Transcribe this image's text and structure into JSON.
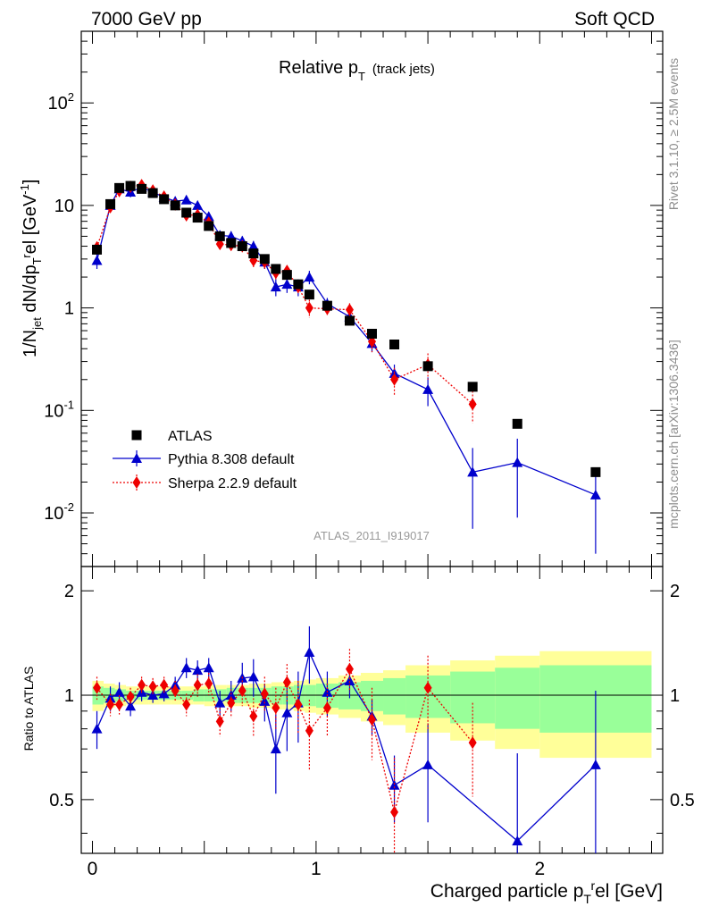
{
  "header": {
    "energy": "7000 GeV pp",
    "process": "Soft QCD"
  },
  "side_labels": {
    "rivet": "Rivet 3.1.10, ≥ 2.5M events",
    "mcplots": "mcplots.cern.ch [arXiv:1306.3436]"
  },
  "analysis_id": "ATLAS_2011_I919017",
  "colors": {
    "atlas": "#000000",
    "pythia": "#0000cc",
    "sherpa": "#ee0000",
    "band_green": "#99ff99",
    "band_yellow": "#ffff99"
  },
  "chart_data": [
    {
      "type": "scatter",
      "title_main": "Relative p",
      "title_sub": "T",
      "title_extra": "(track jets)",
      "ylabel": "1/N_jet dN/dp_T^rel [GeV^-1]",
      "yscale": "log",
      "ylim": [
        0.003,
        500
      ],
      "xlim": [
        -0.05,
        2.55
      ],
      "ytick_labels": [
        "10^-2",
        "10^-1",
        "1",
        "10",
        "10^2"
      ],
      "legend_placement": "lower-left",
      "series": [
        {
          "name": "ATLAS",
          "marker": "square",
          "x": [
            0.02,
            0.08,
            0.12,
            0.17,
            0.22,
            0.27,
            0.32,
            0.37,
            0.42,
            0.47,
            0.52,
            0.57,
            0.62,
            0.67,
            0.72,
            0.77,
            0.82,
            0.87,
            0.92,
            0.97,
            1.05,
            1.15,
            1.25,
            1.35,
            1.5,
            1.7,
            1.9,
            2.25
          ],
          "y": [
            3.7,
            10.3,
            14.8,
            15.5,
            14.5,
            13.2,
            11.5,
            10.0,
            8.5,
            7.6,
            6.3,
            5.0,
            4.3,
            4.0,
            3.4,
            3.0,
            2.4,
            2.1,
            1.7,
            1.35,
            1.05,
            0.75,
            0.56,
            0.44,
            0.27,
            0.17,
            0.074,
            0.025
          ]
        },
        {
          "name": "Pythia 8.308 default",
          "marker": "triangle",
          "x": [
            0.02,
            0.08,
            0.12,
            0.17,
            0.22,
            0.27,
            0.32,
            0.37,
            0.42,
            0.47,
            0.52,
            0.57,
            0.62,
            0.67,
            0.72,
            0.77,
            0.82,
            0.87,
            0.92,
            0.97,
            1.05,
            1.15,
            1.25,
            1.35,
            1.5,
            1.7,
            1.9,
            2.25
          ],
          "y": [
            2.9,
            10.0,
            14.5,
            13.5,
            15.0,
            13.5,
            12.0,
            11.0,
            11.3,
            10.0,
            7.8,
            5.1,
            5.0,
            4.5,
            4.0,
            2.8,
            1.6,
            1.7,
            1.6,
            2.0,
            1.1,
            0.82,
            0.45,
            0.23,
            0.16,
            0.025,
            0.031,
            0.015
          ],
          "err": [
            0.5,
            1.2,
            1.5,
            1.5,
            1.3,
            1.2,
            1.1,
            1.0,
            1.0,
            0.9,
            0.8,
            0.6,
            0.6,
            0.5,
            0.5,
            0.4,
            0.3,
            0.3,
            0.3,
            0.3,
            0.15,
            0.1,
            0.08,
            0.05,
            0.05,
            0.018,
            0.022,
            0.011
          ]
        },
        {
          "name": "Sherpa 2.2.9 default",
          "marker": "diamond",
          "x": [
            0.02,
            0.08,
            0.12,
            0.17,
            0.22,
            0.27,
            0.32,
            0.37,
            0.42,
            0.47,
            0.52,
            0.57,
            0.62,
            0.67,
            0.72,
            0.77,
            0.82,
            0.87,
            0.92,
            0.97,
            1.05,
            1.15,
            1.25,
            1.35,
            1.5,
            1.7
          ],
          "y": [
            3.9,
            9.6,
            13.8,
            15.2,
            15.8,
            14.0,
            12.2,
            10.2,
            8.0,
            8.1,
            6.8,
            4.2,
            4.1,
            4.0,
            2.9,
            2.8,
            2.2,
            2.3,
            1.6,
            1.0,
            0.98,
            0.96,
            0.47,
            0.2,
            0.28,
            0.115
          ],
          "err": [
            0.4,
            1.0,
            1.3,
            1.4,
            1.4,
            1.2,
            1.1,
            1.0,
            0.8,
            0.8,
            0.7,
            0.5,
            0.5,
            0.5,
            0.4,
            0.4,
            0.3,
            0.3,
            0.25,
            0.2,
            0.15,
            0.15,
            0.1,
            0.06,
            0.08,
            0.04
          ]
        }
      ]
    },
    {
      "type": "scatter",
      "ylabel": "Ratio to ATLAS",
      "xlabel": "Charged particle p_T^rel [GeV]",
      "ylim": [
        0.35,
        2.35
      ],
      "xlim": [
        -0.05,
        2.55
      ],
      "xtick_labels": [
        "0",
        "1",
        "2"
      ],
      "ytick_labels": [
        "0.5",
        "1",
        "2"
      ],
      "bands": {
        "x_edges": [
          0.0,
          0.05,
          0.1,
          0.15,
          0.2,
          0.25,
          0.3,
          0.35,
          0.4,
          0.45,
          0.5,
          0.55,
          0.6,
          0.65,
          0.7,
          0.75,
          0.8,
          0.85,
          0.9,
          0.95,
          1.0,
          1.1,
          1.2,
          1.3,
          1.4,
          1.6,
          1.8,
          2.0,
          2.5
        ],
        "green_halfwidth": [
          0.06,
          0.05,
          0.04,
          0.03,
          0.03,
          0.03,
          0.03,
          0.03,
          0.03,
          0.04,
          0.04,
          0.04,
          0.05,
          0.05,
          0.05,
          0.05,
          0.06,
          0.06,
          0.07,
          0.07,
          0.08,
          0.09,
          0.1,
          0.12,
          0.14,
          0.17,
          0.2,
          0.22
        ],
        "yellow_halfwidth": [
          0.1,
          0.08,
          0.07,
          0.06,
          0.06,
          0.06,
          0.06,
          0.06,
          0.06,
          0.06,
          0.07,
          0.07,
          0.07,
          0.07,
          0.08,
          0.08,
          0.09,
          0.09,
          0.1,
          0.11,
          0.12,
          0.14,
          0.16,
          0.18,
          0.22,
          0.26,
          0.3,
          0.34
        ]
      },
      "series": [
        {
          "name": "Pythia 8.308 default",
          "x": [
            0.02,
            0.08,
            0.12,
            0.17,
            0.22,
            0.27,
            0.32,
            0.37,
            0.42,
            0.47,
            0.52,
            0.57,
            0.62,
            0.67,
            0.72,
            0.77,
            0.82,
            0.87,
            0.92,
            0.97,
            1.05,
            1.15,
            1.25,
            1.35,
            1.5,
            1.9,
            2.25
          ],
          "y": [
            0.8,
            0.98,
            1.02,
            0.93,
            1.02,
            1.0,
            1.01,
            1.07,
            1.2,
            1.18,
            1.2,
            0.95,
            1.0,
            1.12,
            1.13,
            0.96,
            0.7,
            0.89,
            0.95,
            1.33,
            1.02,
            1.1,
            0.87,
            0.55,
            0.63,
            0.38,
            0.63
          ],
          "err": [
            0.1,
            0.08,
            0.07,
            0.06,
            0.06,
            0.05,
            0.05,
            0.06,
            0.08,
            0.08,
            0.08,
            0.08,
            0.1,
            0.12,
            0.14,
            0.12,
            0.18,
            0.2,
            0.22,
            0.25,
            0.15,
            0.12,
            0.1,
            0.12,
            0.2,
            0.3,
            0.4
          ]
        },
        {
          "name": "Sherpa 2.2.9 default",
          "x": [
            0.02,
            0.08,
            0.12,
            0.17,
            0.22,
            0.27,
            0.32,
            0.37,
            0.42,
            0.47,
            0.52,
            0.57,
            0.62,
            0.67,
            0.72,
            0.77,
            0.82,
            0.87,
            0.92,
            0.97,
            1.05,
            1.15,
            1.25,
            1.35,
            1.5,
            1.7
          ],
          "y": [
            1.05,
            0.94,
            0.94,
            0.99,
            1.07,
            1.06,
            1.07,
            1.03,
            0.94,
            1.07,
            1.08,
            0.84,
            0.95,
            1.03,
            0.87,
            1.01,
            0.92,
            1.09,
            0.94,
            0.79,
            0.92,
            1.19,
            0.85,
            0.46,
            1.05,
            0.73
          ],
          "err": [
            0.08,
            0.07,
            0.06,
            0.06,
            0.06,
            0.06,
            0.06,
            0.07,
            0.07,
            0.08,
            0.08,
            0.08,
            0.09,
            0.1,
            0.11,
            0.12,
            0.13,
            0.14,
            0.16,
            0.18,
            0.16,
            0.17,
            0.2,
            0.2,
            0.25,
            0.22
          ]
        }
      ]
    }
  ]
}
